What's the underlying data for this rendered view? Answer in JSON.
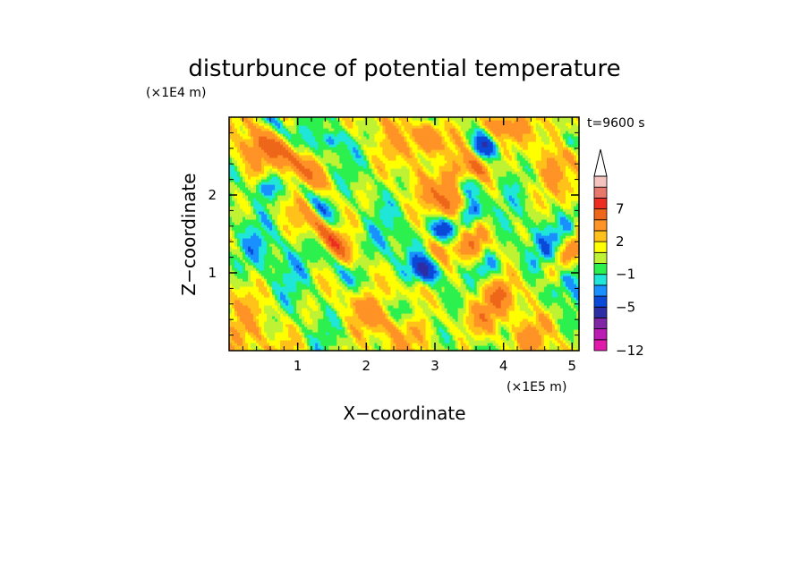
{
  "chart_data": {
    "type": "heatmap",
    "title": "disturbunce of potential temperature",
    "time_label": "t=9600 s",
    "xlabel": "X−coordinate",
    "ylabel": "Z−coordinate",
    "x_unit": "(×1E5 m)",
    "y_unit": "(×1E4 m)",
    "xlim": [
      0,
      5.1
    ],
    "ylim": [
      0,
      3.0
    ],
    "x_ticks": [
      1,
      2,
      3,
      4,
      5
    ],
    "y_ticks": [
      1,
      2
    ],
    "x_tick_labels": [
      "1",
      "2",
      "3",
      "4",
      "5"
    ],
    "y_tick_labels": [
      "1",
      "2"
    ],
    "colorbar": {
      "levels": [
        -12,
        -11,
        -9,
        -7,
        -5,
        -3,
        -2,
        -1,
        0,
        1,
        2,
        3,
        5,
        7,
        9,
        11
      ],
      "colors": [
        "#e11aab",
        "#bb1cb3",
        "#7f25a6",
        "#2d2da5",
        "#0b49d8",
        "#1890ff",
        "#1fe6d8",
        "#2cf04e",
        "#bff232",
        "#ffff00",
        "#ffc11a",
        "#ff9326",
        "#ee6619",
        "#ee2e23",
        "#e8786b",
        "#f5c3bf"
      ],
      "labeled_levels": [
        {
          "level": 7,
          "label": "7"
        },
        {
          "level": 2,
          "label": "2"
        },
        {
          "level": -1,
          "label": "−1"
        },
        {
          "level": -5,
          "label": "−5"
        },
        {
          "level": -12,
          "label": "−12"
        }
      ],
      "extend": "max"
    },
    "field_description": "quasi-random contour field of potential temperature disturbance; two mountain sources near x=2.3 and x=4.3 emitting V-shaped wave beams upward"
  }
}
